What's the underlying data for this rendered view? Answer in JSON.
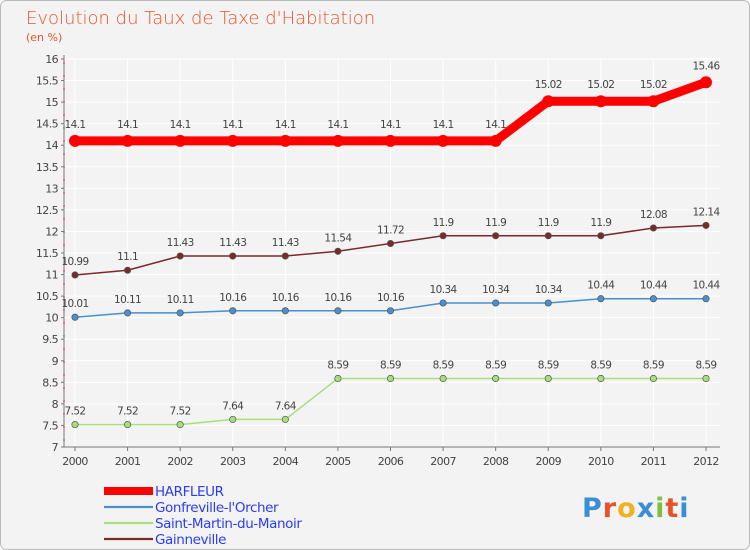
{
  "chart_data": {
    "type": "line",
    "title": "Evolution du Taux de Taxe d'Habitation",
    "unit_label": "(en %)",
    "x": [
      "2000",
      "2001",
      "2002",
      "2003",
      "2004",
      "2005",
      "2006",
      "2007",
      "2008",
      "2009",
      "2010",
      "2011",
      "2012"
    ],
    "ylim": [
      7,
      16
    ],
    "yticks": [
      7,
      7.5,
      8,
      8.5,
      9,
      9.5,
      10,
      10.5,
      11,
      11.5,
      12,
      12.5,
      13,
      13.5,
      14,
      14.5,
      15,
      15.5,
      16
    ],
    "series": [
      {
        "name": "HARFLEUR",
        "color": "#ff0000",
        "values": [
          14.1,
          14.1,
          14.1,
          14.1,
          14.1,
          14.1,
          14.1,
          14.1,
          14.1,
          15.02,
          15.02,
          15.02,
          15.46
        ],
        "labels": [
          "14.1",
          "14.1",
          "14.1",
          "14.1",
          "14.1",
          "14.1",
          "14.1",
          "14.1",
          "14.1",
          "15.02",
          "15.02",
          "15.02",
          "15.46"
        ]
      },
      {
        "name": "Gonfreville-l'Orcher",
        "color": "#4a8fcf",
        "values": [
          10.01,
          10.11,
          10.11,
          10.16,
          10.16,
          10.16,
          10.16,
          10.34,
          10.34,
          10.34,
          10.44,
          10.44,
          10.44
        ],
        "labels": [
          "10.01",
          "10.11",
          "10.11",
          "10.16",
          "10.16",
          "10.16",
          "10.16",
          "10.34",
          "10.34",
          "10.34",
          "10.44",
          "10.44",
          "10.44"
        ]
      },
      {
        "name": "Saint-Martin-du-Manoir",
        "color": "#a6e07a",
        "values": [
          7.52,
          7.52,
          7.52,
          7.64,
          7.64,
          8.59,
          8.59,
          8.59,
          8.59,
          8.59,
          8.59,
          8.59,
          8.59
        ],
        "labels": [
          "7.52",
          "7.52",
          "7.52",
          "7.64",
          "7.64",
          "8.59",
          "8.59",
          "8.59",
          "8.59",
          "8.59",
          "8.59",
          "8.59",
          "8.59"
        ]
      },
      {
        "name": "Gainneville",
        "color": "#7a2a2a",
        "values": [
          10.99,
          11.1,
          11.43,
          11.43,
          11.43,
          11.54,
          11.72,
          11.9,
          11.9,
          11.9,
          11.9,
          12.08,
          12.14
        ],
        "labels": [
          "10.99",
          "11.1",
          "11.43",
          "11.43",
          "11.43",
          "11.54",
          "11.72",
          "11.9",
          "11.9",
          "11.9",
          "11.9",
          "12.08",
          "12.14"
        ]
      }
    ],
    "legend_position": "bottom-left",
    "grid": true
  },
  "logo": {
    "text": "Proxiti",
    "letters": [
      "P",
      "r",
      "o",
      "x",
      "i",
      "t",
      "i"
    ],
    "colors": [
      "#3a8fd4",
      "#e8542a",
      "#f0b020",
      "#3a8fd4",
      "#7fbf3f",
      "#e8542a",
      "#3a8fd4"
    ]
  }
}
